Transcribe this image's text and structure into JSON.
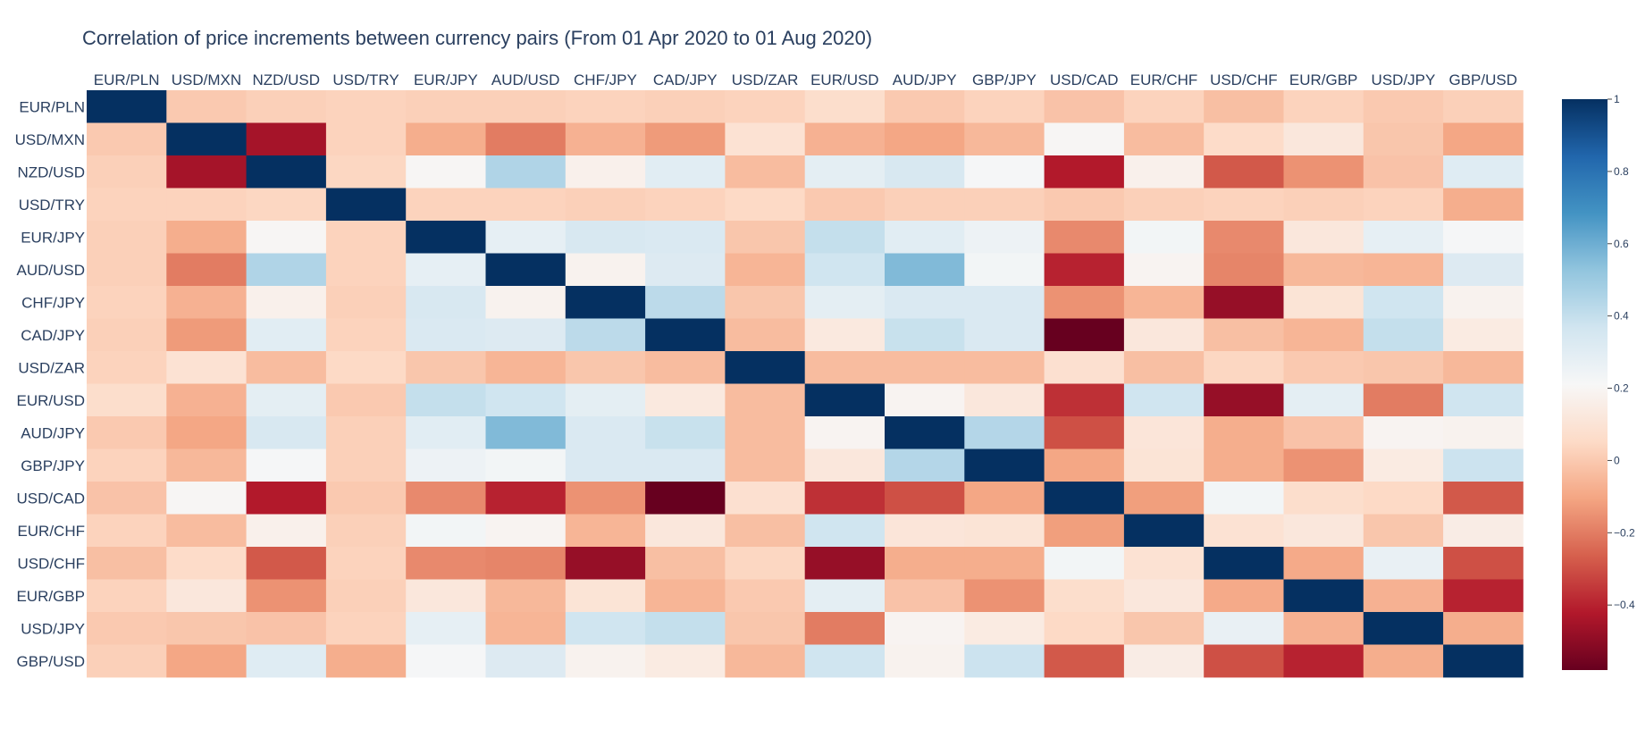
{
  "chart_data": {
    "type": "heatmap",
    "title": "Correlation of price increments between currency pairs (From 01 Apr 2020 to 01 Aug 2020)",
    "x_labels": [
      "EUR/PLN",
      "USD/MXN",
      "NZD/USD",
      "USD/TRY",
      "EUR/JPY",
      "AUD/USD",
      "CHF/JPY",
      "CAD/JPY",
      "USD/ZAR",
      "EUR/USD",
      "AUD/JPY",
      "GBP/JPY",
      "USD/CAD",
      "EUR/CHF",
      "USD/CHF",
      "EUR/GBP",
      "USD/JPY",
      "GBP/USD"
    ],
    "y_labels": [
      "EUR/PLN",
      "USD/MXN",
      "NZD/USD",
      "USD/TRY",
      "EUR/JPY",
      "AUD/USD",
      "CHF/JPY",
      "CAD/JPY",
      "USD/ZAR",
      "EUR/USD",
      "AUD/JPY",
      "GBP/JPY",
      "USD/CAD",
      "EUR/CHF",
      "USD/CHF",
      "EUR/GBP",
      "USD/JPY",
      "GBP/USD"
    ],
    "zmin": -0.58,
    "zmax": 1,
    "colorscale": "RdBu",
    "colorbar_ticks": [
      1,
      0.8,
      0.6,
      0.4,
      0.2,
      0,
      -0.2,
      -0.4
    ],
    "colorbar_tick_labels": [
      "1",
      "0.8",
      "0.6",
      "0.4",
      "0.2",
      "0",
      "−0.2",
      "−0.4"
    ],
    "z": [
      [
        1,
        0.0,
        0.02,
        0.03,
        0.02,
        0.02,
        0.03,
        0.02,
        0.03,
        0.07,
        0.0,
        0.03,
        -0.02,
        0.03,
        -0.03,
        0.03,
        0.0,
        0.02
      ],
      [
        0.0,
        1,
        -0.45,
        0.03,
        -0.08,
        -0.2,
        -0.07,
        -0.13,
        0.09,
        -0.07,
        -0.1,
        -0.05,
        0.2,
        -0.04,
        0.06,
        0.12,
        -0.01,
        -0.1
      ],
      [
        0.02,
        -0.45,
        1,
        0.04,
        0.2,
        0.45,
        0.17,
        0.3,
        -0.04,
        0.29,
        0.34,
        0.22,
        -0.42,
        0.17,
        -0.28,
        -0.15,
        -0.02,
        0.31
      ],
      [
        0.03,
        0.03,
        0.04,
        1,
        0.03,
        0.03,
        0.02,
        0.03,
        0.05,
        0.0,
        0.02,
        0.02,
        0.0,
        0.02,
        0.03,
        0.02,
        0.03,
        -0.08
      ],
      [
        0.02,
        -0.08,
        0.2,
        0.03,
        1,
        0.28,
        0.34,
        0.33,
        -0.01,
        0.4,
        0.3,
        0.25,
        -0.17,
        0.23,
        -0.17,
        0.12,
        0.28,
        0.22
      ],
      [
        0.02,
        -0.2,
        0.45,
        0.03,
        0.28,
        1,
        0.18,
        0.32,
        -0.06,
        0.37,
        0.56,
        0.23,
        -0.4,
        0.19,
        -0.18,
        -0.05,
        -0.06,
        0.32
      ],
      [
        0.03,
        -0.07,
        0.17,
        0.02,
        0.34,
        0.18,
        1,
        0.42,
        -0.01,
        0.29,
        0.33,
        0.33,
        -0.15,
        -0.06,
        -0.48,
        0.1,
        0.37,
        0.18
      ],
      [
        0.02,
        -0.13,
        0.3,
        0.03,
        0.33,
        0.32,
        0.42,
        1,
        -0.04,
        0.13,
        0.39,
        0.33,
        -0.58,
        0.12,
        -0.03,
        -0.06,
        0.4,
        0.14
      ],
      [
        0.03,
        0.09,
        -0.04,
        0.05,
        -0.01,
        -0.06,
        -0.01,
        -0.04,
        1,
        -0.04,
        -0.04,
        -0.04,
        0.08,
        -0.03,
        0.04,
        0.0,
        -0.01,
        -0.05
      ],
      [
        0.07,
        -0.07,
        0.29,
        0.0,
        0.4,
        0.37,
        0.29,
        0.13,
        -0.04,
        1,
        0.19,
        0.12,
        -0.37,
        0.37,
        -0.48,
        0.29,
        -0.2,
        0.37
      ],
      [
        0.0,
        -0.1,
        0.34,
        0.02,
        0.3,
        0.56,
        0.33,
        0.39,
        -0.04,
        0.19,
        1,
        0.44,
        -0.3,
        0.11,
        -0.08,
        -0.02,
        0.19,
        0.18
      ],
      [
        0.03,
        -0.05,
        0.22,
        0.02,
        0.25,
        0.23,
        0.33,
        0.33,
        -0.04,
        0.12,
        0.44,
        1,
        -0.1,
        0.1,
        -0.08,
        -0.15,
        0.14,
        0.38
      ],
      [
        -0.02,
        0.2,
        -0.42,
        0.0,
        -0.17,
        -0.4,
        -0.15,
        -0.58,
        0.08,
        -0.37,
        -0.3,
        -0.1,
        1,
        -0.12,
        0.23,
        0.07,
        0.05,
        -0.28
      ],
      [
        0.03,
        -0.04,
        0.17,
        0.02,
        0.23,
        0.19,
        -0.06,
        0.12,
        -0.03,
        0.37,
        0.11,
        0.1,
        -0.12,
        1,
        0.09,
        0.12,
        -0.01,
        0.15
      ],
      [
        -0.03,
        0.06,
        -0.28,
        0.03,
        -0.17,
        -0.18,
        -0.48,
        -0.03,
        0.04,
        -0.48,
        -0.08,
        -0.08,
        0.23,
        0.09,
        1,
        -0.09,
        0.27,
        -0.3
      ],
      [
        0.03,
        0.12,
        -0.15,
        0.02,
        0.12,
        -0.05,
        0.1,
        -0.06,
        0.0,
        0.29,
        -0.02,
        -0.15,
        0.07,
        0.12,
        -0.09,
        1,
        -0.07,
        -0.4
      ],
      [
        0.0,
        -0.01,
        -0.02,
        0.03,
        0.28,
        -0.06,
        0.37,
        0.4,
        -0.01,
        -0.2,
        0.19,
        0.14,
        0.05,
        -0.01,
        0.27,
        -0.07,
        1,
        -0.08
      ],
      [
        0.02,
        -0.1,
        0.31,
        -0.08,
        0.22,
        0.32,
        0.18,
        0.14,
        -0.05,
        0.37,
        0.18,
        0.38,
        -0.28,
        0.15,
        -0.3,
        -0.4,
        -0.08,
        1
      ]
    ]
  }
}
